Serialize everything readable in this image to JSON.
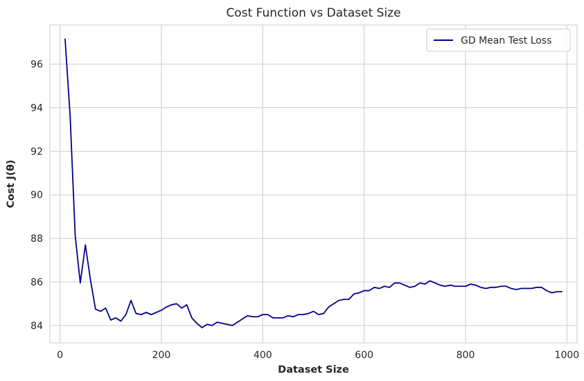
{
  "chart_data": {
    "type": "line",
    "title": "Cost Function vs Dataset Size",
    "xlabel": "Dataset Size",
    "ylabel": "Cost J(θ)",
    "xlim": [
      -20,
      1020
    ],
    "ylim": [
      83.2,
      97.8
    ],
    "xticks": [
      0,
      200,
      400,
      600,
      800,
      1000
    ],
    "yticks": [
      84,
      86,
      88,
      90,
      92,
      94,
      96
    ],
    "grid": true,
    "legend_position": "top-right",
    "series": [
      {
        "name": "GD Mean Test Loss",
        "color": "#00008b",
        "x": [
          10,
          20,
          30,
          40,
          50,
          60,
          70,
          80,
          90,
          100,
          110,
          120,
          130,
          140,
          150,
          160,
          170,
          180,
          190,
          200,
          210,
          220,
          230,
          240,
          250,
          260,
          270,
          280,
          290,
          300,
          310,
          320,
          330,
          340,
          350,
          360,
          370,
          380,
          390,
          400,
          410,
          420,
          430,
          440,
          450,
          460,
          470,
          480,
          490,
          500,
          510,
          520,
          530,
          540,
          550,
          560,
          570,
          580,
          590,
          600,
          610,
          620,
          630,
          640,
          650,
          660,
          670,
          680,
          690,
          700,
          710,
          720,
          730,
          740,
          750,
          760,
          770,
          780,
          790,
          800,
          810,
          820,
          830,
          840,
          850,
          860,
          870,
          880,
          890,
          900,
          910,
          920,
          930,
          940,
          950,
          960,
          970,
          980,
          990
        ],
        "y": [
          97.15,
          93.6,
          88.1,
          85.95,
          87.7,
          86.1,
          84.75,
          84.65,
          84.8,
          84.25,
          84.35,
          84.2,
          84.5,
          85.15,
          84.55,
          84.5,
          84.6,
          84.5,
          84.6,
          84.7,
          84.85,
          84.95,
          85.0,
          84.8,
          84.95,
          84.35,
          84.1,
          83.9,
          84.05,
          84.0,
          84.15,
          84.1,
          84.05,
          84.0,
          84.15,
          84.3,
          84.45,
          84.4,
          84.4,
          84.5,
          84.5,
          84.35,
          84.35,
          84.35,
          84.45,
          84.4,
          84.5,
          84.5,
          84.55,
          84.65,
          84.5,
          84.55,
          84.85,
          85.0,
          85.15,
          85.2,
          85.2,
          85.45,
          85.5,
          85.6,
          85.6,
          85.75,
          85.7,
          85.8,
          85.75,
          85.95,
          85.95,
          85.85,
          85.75,
          85.8,
          85.95,
          85.9,
          86.05,
          85.95,
          85.85,
          85.8,
          85.85,
          85.8,
          85.8,
          85.8,
          85.9,
          85.85,
          85.75,
          85.7,
          85.75,
          85.75,
          85.8,
          85.8,
          85.7,
          85.65,
          85.7,
          85.7,
          85.7,
          85.75,
          85.75,
          85.6,
          85.5,
          85.55,
          85.55
        ]
      }
    ]
  }
}
